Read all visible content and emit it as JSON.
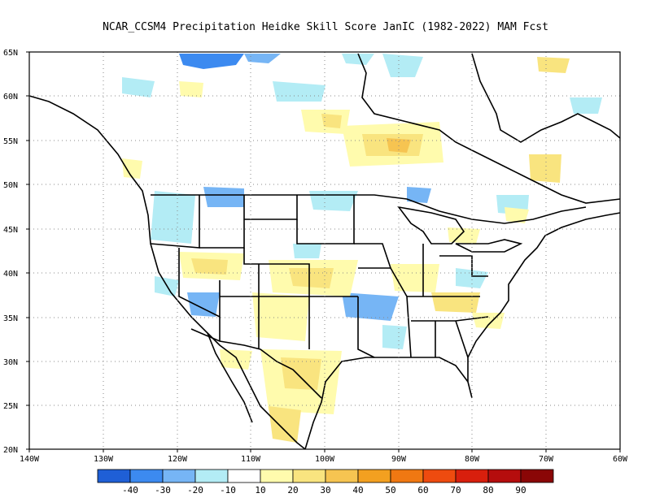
{
  "title": "NCAR_CCSM4  Precipitation Heidke Skill Score JanIC (1982-2022) MAM Fcst",
  "lat_labels": [
    "65N",
    "60N",
    "55N",
    "50N",
    "45N",
    "40N",
    "35N",
    "30N",
    "25N",
    "20N"
  ],
  "lon_labels": [
    "140W",
    "130W",
    "120W",
    "110W",
    "100W",
    "90W",
    "80W",
    "70W",
    "60W"
  ],
  "colorbar": {
    "colors": [
      "#1f5fd6",
      "#3c8af0",
      "#76b5f5",
      "#b3ecf5",
      "#ffffff",
      "#fffbad",
      "#f9e47f",
      "#f6c451",
      "#f3a020",
      "#f07812",
      "#ee4b0f",
      "#d81f0d",
      "#b50d0d",
      "#8a0606"
    ],
    "labels": [
      "-40",
      "-30",
      "-20",
      "-10",
      "10",
      "20",
      "30",
      "40",
      "50",
      "60",
      "70",
      "80",
      "90"
    ]
  }
}
